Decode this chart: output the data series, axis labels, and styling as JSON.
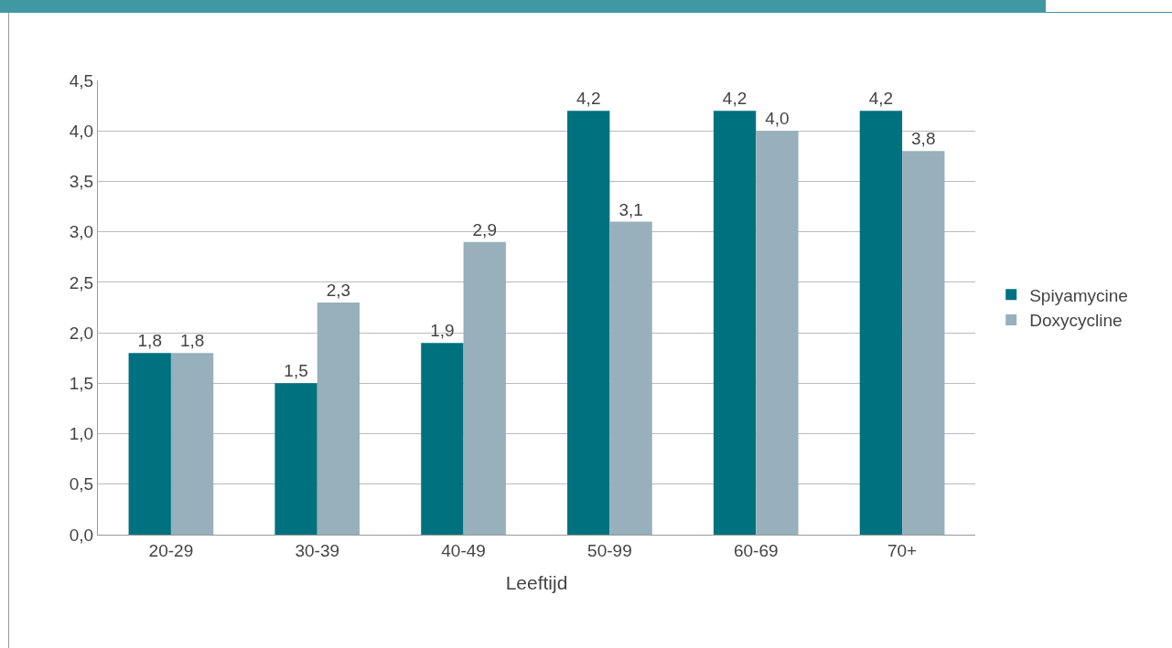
{
  "chart_data": {
    "type": "bar",
    "xlabel": "Leeftijd",
    "categories": [
      "20-29",
      "30-39",
      "40-49",
      "50-99",
      "60-69",
      "70+"
    ],
    "series": [
      {
        "name": "Spiyamycine",
        "color": "#00717f",
        "values": [
          1.8,
          1.5,
          1.9,
          4.2,
          4.2,
          4.2
        ],
        "value_labels": [
          "1,8",
          "1,5",
          "1,9",
          "4,2",
          "4,2",
          "4,2"
        ]
      },
      {
        "name": "Doxycycline",
        "color": "#97b0bb",
        "values": [
          1.8,
          2.3,
          2.9,
          3.1,
          4.0,
          3.8
        ],
        "value_labels": [
          "1,8",
          "2,3",
          "2,9",
          "3,1",
          "4,0",
          "3,8"
        ]
      }
    ],
    "ylim": [
      0,
      4.5
    ],
    "yticks": [
      {
        "value": 0,
        "label": "0,0"
      },
      {
        "value": 0.5,
        "label": "0,5"
      },
      {
        "value": 1,
        "label": "1,0"
      },
      {
        "value": 1.5,
        "label": "1,5"
      },
      {
        "value": 2,
        "label": "2,0"
      },
      {
        "value": 2.5,
        "label": "2,5"
      },
      {
        "value": 3,
        "label": "3,0"
      },
      {
        "value": 3.5,
        "label": "3,5"
      },
      {
        "value": 4,
        "label": "4,0"
      },
      {
        "value": 4.5,
        "label": "4,5"
      }
    ],
    "grid": "y",
    "legend": "right"
  }
}
